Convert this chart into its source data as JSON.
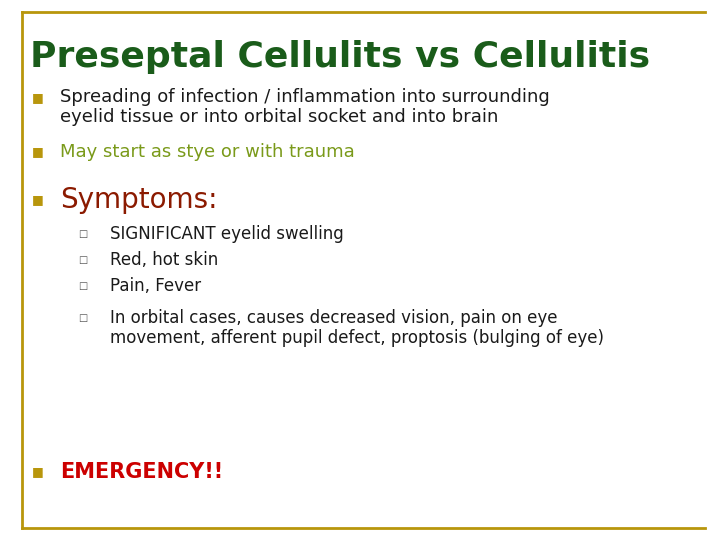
{
  "title": "Preseptal Cellulits vs Cellulitis",
  "title_color": "#1a5c1a",
  "title_fontsize": 26,
  "border_color": "#b8960c",
  "background_color": "#ffffff",
  "bullet_color": "#b8960c",
  "bullet1_text_line1": "Spreading of infection / inflammation into surrounding",
  "bullet1_text_line2": "eyelid tissue or into orbital socket and into brain",
  "bullet1_color": "#1a1a1a",
  "bullet1_fontsize": 13,
  "bullet2_text": "May start as stye or with trauma",
  "bullet2_color": "#7a9a1a",
  "bullet2_fontsize": 13,
  "bullet3_text": "Symptoms:",
  "bullet3_color": "#8b1a00",
  "bullet3_fontsize": 20,
  "sub_bullet_color": "#1a1a1a",
  "sub_bullet_fontsize": 12,
  "sub_bullet_box_color": "#555555",
  "emergency_text": "EMERGENCY!!",
  "emergency_color": "#cc0000",
  "emergency_fontsize": 15
}
